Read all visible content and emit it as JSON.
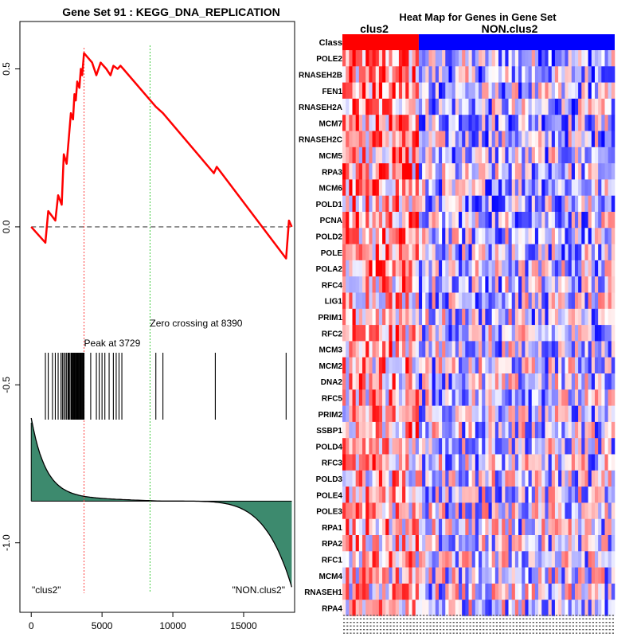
{
  "chart_data": [
    {
      "type": "line",
      "title": "Gene Set  91 : KEGG_DNA_REPLICATION",
      "x_ticks": [
        0,
        5000,
        10000,
        15000
      ],
      "x_tick_labels": [
        "0",
        "5000",
        "10000",
        "15000"
      ],
      "y_ticks": [
        0.5,
        0.0,
        -0.5,
        -1.0
      ],
      "y_tick_labels": [
        "0.5",
        "0.0",
        "-0.5",
        "-1.0"
      ],
      "xlim": [
        -800,
        18600
      ],
      "ylim": [
        -1.22,
        0.65
      ],
      "running_es": [
        [
          0,
          0.0
        ],
        [
          1000,
          -0.05
        ],
        [
          1200,
          0.05
        ],
        [
          1700,
          0.02
        ],
        [
          1900,
          0.1
        ],
        [
          2150,
          0.07
        ],
        [
          2300,
          0.23
        ],
        [
          2500,
          0.2
        ],
        [
          2650,
          0.28
        ],
        [
          2800,
          0.36
        ],
        [
          2950,
          0.34
        ],
        [
          3050,
          0.42
        ],
        [
          3150,
          0.4
        ],
        [
          3250,
          0.46
        ],
        [
          3400,
          0.44
        ],
        [
          3500,
          0.5
        ],
        [
          3600,
          0.48
        ],
        [
          3729,
          0.55
        ],
        [
          4300,
          0.52
        ],
        [
          4600,
          0.48
        ],
        [
          4900,
          0.52
        ],
        [
          5300,
          0.5
        ],
        [
          5600,
          0.48
        ],
        [
          5800,
          0.51
        ],
        [
          6100,
          0.5
        ],
        [
          6300,
          0.51
        ],
        [
          6500,
          0.5
        ],
        [
          8800,
          0.38
        ],
        [
          9300,
          0.36
        ],
        [
          12900,
          0.17
        ],
        [
          13100,
          0.19
        ],
        [
          18000,
          -0.1
        ],
        [
          18200,
          0.02
        ],
        [
          18400,
          0.0
        ]
      ],
      "hit_positions": [
        1000,
        1200,
        1500,
        1700,
        1900,
        2100,
        2200,
        2300,
        2400,
        2500,
        2600,
        2650,
        2700,
        2800,
        2850,
        2900,
        2950,
        3000,
        3050,
        3100,
        3150,
        3200,
        3250,
        3300,
        3350,
        3400,
        3450,
        3500,
        3550,
        3600,
        3650,
        3700,
        3729,
        4200,
        4600,
        4800,
        5000,
        5200,
        5500,
        5800,
        6000,
        6200,
        6400,
        8800,
        9300,
        13000,
        18000
      ],
      "peak_position": 3729,
      "zero_crossing": 8390,
      "annotations": {
        "peak": "Peak at 3729",
        "zero": "Zero crossing at 8390",
        "left_class": "\"clus2\"",
        "right_class": "\"NON.clus2\""
      },
      "ranked_metric_range": [
        -0.62,
        -1.14
      ],
      "ranked_metric_baseline": -0.868,
      "colors": {
        "es": "#ff0000",
        "peak": "#ff4444",
        "zero": "#44cc44",
        "fill": "#3d8a6e",
        "hits": "#000000"
      }
    },
    {
      "type": "heatmap",
      "title": "Heat Map for Genes in Gene Set",
      "class_row_label": "Class",
      "groups": [
        {
          "name": "clus2",
          "n_columns": 23,
          "color": "#ff0000"
        },
        {
          "name": "NON.clus2",
          "n_columns": 59,
          "color": "#0000ff"
        }
      ],
      "genes": [
        "POLE2",
        "RNASEH2B",
        "FEN1",
        "RNASEH2A",
        "MCM7",
        "RNASEH2C",
        "MCM5",
        "RPA3",
        "MCM6",
        "POLD1",
        "PCNA",
        "POLD2",
        "POLE",
        "POLA2",
        "RFC4",
        "LIG1",
        "PRIM1",
        "RFC2",
        "MCM3",
        "MCM2",
        "DNA2",
        "RFC5",
        "PRIM2",
        "SSBP1",
        "POLD4",
        "RFC3",
        "POLD3",
        "POLE4",
        "POLE3",
        "RPA1",
        "RPA2",
        "RFC1",
        "MCM4",
        "RNASEH1",
        "RPA4"
      ],
      "color_scale": [
        "#0000ff",
        "#ffffff",
        "#ff0000"
      ]
    }
  ]
}
